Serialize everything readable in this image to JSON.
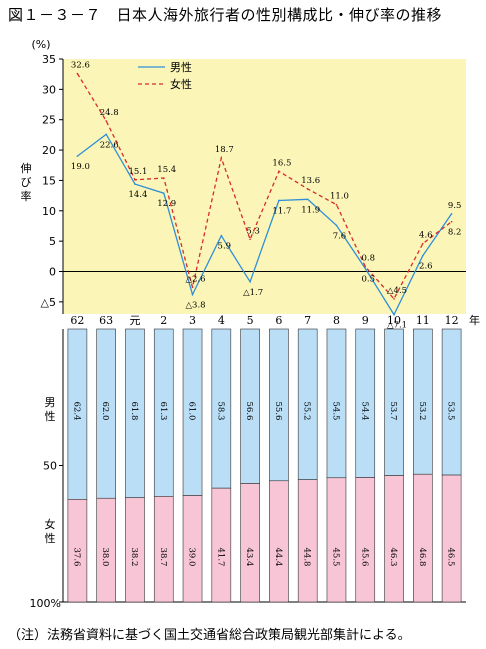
{
  "title": "図１－３－７　日本人海外旅行者の性別構成比・伸び率の推移",
  "note": "（注）法務省資料に基づく国土交通省総合政策局観光部集計による。",
  "colors": {
    "plot_bg": "#fbf6b8",
    "male_line": "#2f8fd8",
    "female_line": "#d82b2b",
    "male_bar": "#b9def6",
    "female_bar": "#f8c5d6"
  },
  "chart_data": [
    {
      "type": "line",
      "unit_label": "(%)",
      "ylabel": "伸び率",
      "ylim": [
        -7,
        35
      ],
      "yticks": [
        35,
        30,
        25,
        20,
        15,
        10,
        5,
        0,
        -5
      ],
      "ytick_labels": [
        "35",
        "30",
        "25",
        "20",
        "15",
        "10",
        "5",
        "0",
        "△5"
      ],
      "legend_position": "top-center",
      "categories": [
        "62",
        "63",
        "元",
        "2",
        "3",
        "4",
        "5",
        "6",
        "7",
        "8",
        "9",
        "10",
        "11",
        "12"
      ],
      "category_suffix": "年",
      "series": [
        {
          "name": "男性",
          "style": "solid",
          "values": [
            19.0,
            22.6,
            14.4,
            12.9,
            -3.8,
            5.9,
            -1.7,
            11.7,
            11.9,
            7.6,
            0.5,
            -7.1,
            2.6,
            9.5
          ],
          "labels": [
            "19.0",
            "22.6",
            "14.4",
            "12.9",
            "△3.8",
            "5.9",
            "△1.7",
            "11.7",
            "11.9",
            "7.6",
            "0.5",
            "△7.1",
            "2.6",
            "9.5"
          ]
        },
        {
          "name": "女性",
          "style": "dashed",
          "values": [
            32.6,
            24.8,
            15.1,
            15.4,
            -2.6,
            18.7,
            5.3,
            16.5,
            13.6,
            11.0,
            0.8,
            -4.5,
            4.6,
            8.2
          ],
          "labels": [
            "32.6",
            "24.8",
            "15.1",
            "15.4",
            "△2.6",
            "18.7",
            "5.3",
            "16.5",
            "13.6",
            "11.0",
            "0.8",
            "△4.5",
            "4.6",
            "8.2"
          ]
        }
      ]
    },
    {
      "type": "bar",
      "stacked": true,
      "categories": [
        "62",
        "63",
        "元",
        "2",
        "3",
        "4",
        "5",
        "6",
        "7",
        "8",
        "9",
        "10",
        "11",
        "12"
      ],
      "yticks_labels": [
        "50",
        "100%"
      ],
      "series": [
        {
          "name": "男性",
          "values": [
            62.4,
            62.0,
            61.8,
            61.3,
            61.0,
            58.3,
            56.6,
            55.6,
            55.2,
            54.5,
            54.4,
            53.7,
            53.2,
            53.5
          ],
          "labels": [
            "62.4",
            "62.0",
            "61.8",
            "61.3",
            "61.0",
            "58.3",
            "56.6",
            "55.6",
            "55.2",
            "54.5",
            "54.4",
            "53.7",
            "53.2",
            "53.5"
          ]
        },
        {
          "name": "女性",
          "values": [
            37.6,
            38.0,
            38.2,
            38.7,
            39.0,
            41.7,
            43.4,
            44.4,
            44.8,
            45.5,
            45.6,
            46.3,
            46.8,
            46.5
          ],
          "labels": [
            "37.6",
            "38.0",
            "38.2",
            "38.7",
            "39.0",
            "41.7",
            "43.4",
            "44.4",
            "44.8",
            "45.5",
            "45.6",
            "46.3",
            "46.8",
            "46.5"
          ]
        }
      ]
    }
  ]
}
